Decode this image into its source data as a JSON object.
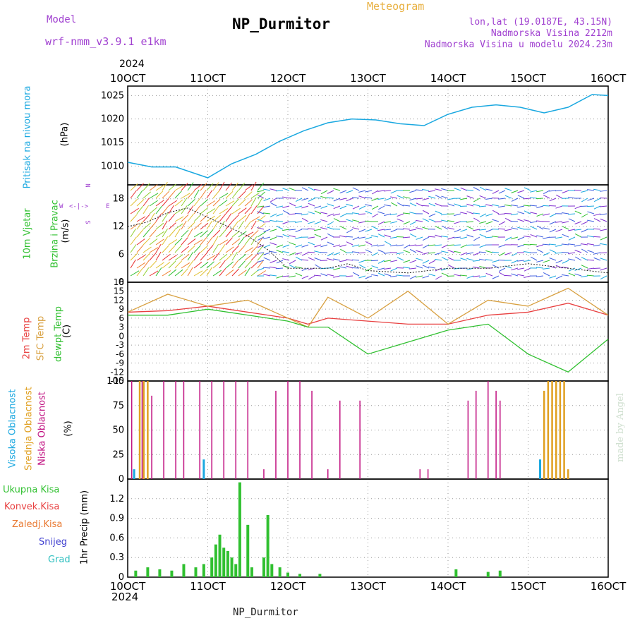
{
  "header": {
    "model_label": "Model",
    "model_name": "wrf-nmm_v3.9.1 e1km",
    "title": "NP_Durmitor",
    "meteogram": "Meteogram",
    "lonlat": "lon,lat (19.0187E, 43.15N)",
    "altitude": "Nadmorska Visina 2212m",
    "model_altitude": "Nadmorska Visina u modelu 2024.23m",
    "year_top": "2024",
    "year_bottom": "2024",
    "footer": "NP_Durmitor",
    "credit": "made by Angel"
  },
  "colors": {
    "pressure": "#1aa8e0",
    "temp2m": "#e84040",
    "sfc": "#d8a040",
    "dewpt": "#30c030",
    "high_cloud": "#1aa8e0",
    "mid_cloud": "#e0a020",
    "low_cloud": "#c01080",
    "precip": "#30c030"
  },
  "chart_data": [
    {
      "type": "line",
      "panel": "pressure",
      "ylabels": [
        "Pritisak na nivou mora",
        "(hPa)"
      ],
      "x_ticks": [
        "10OCT",
        "11OCT",
        "12OCT",
        "13OCT",
        "14OCT",
        "15OCT",
        "16OCT"
      ],
      "ylim": [
        1006,
        1027
      ],
      "y_ticks": [
        "1010",
        "1015",
        "1020",
        "1025"
      ],
      "x": [
        0,
        0.3,
        0.6,
        1.0,
        1.3,
        1.6,
        1.9,
        2.2,
        2.5,
        2.8,
        3.1,
        3.4,
        3.7,
        4.0,
        4.3,
        4.6,
        4.9,
        5.2,
        5.5,
        5.8,
        6.0
      ],
      "values": [
        1010.8,
        1009.8,
        1009.8,
        1007.5,
        1010.5,
        1012.5,
        1015.3,
        1017.5,
        1019.2,
        1020.0,
        1019.8,
        1019.0,
        1018.6,
        1021.0,
        1022.5,
        1023.0,
        1022.5,
        1021.3,
        1022.5,
        1025.2,
        1025.0
      ]
    },
    {
      "type": "scatter",
      "panel": "wind",
      "ylabels": [
        "10m Vjetar",
        "Brzina i Pravac",
        "(m/s)"
      ],
      "compass": [
        "N",
        "W",
        "E",
        "S"
      ],
      "ylim": [
        0,
        21
      ],
      "y_ticks": [
        "0",
        "6",
        "12",
        "18"
      ],
      "x": [
        0,
        0.25,
        0.5,
        0.75,
        1.0,
        1.25,
        1.5,
        1.75,
        2.0,
        2.25,
        2.5,
        2.75,
        3.0,
        3.5,
        4.0,
        4.5,
        5.0,
        5.5,
        6.0
      ],
      "values": [
        12,
        13,
        15,
        16,
        14,
        12,
        10,
        7,
        3,
        3,
        3,
        4,
        2.5,
        2,
        3,
        3,
        4,
        3,
        2
      ]
    },
    {
      "type": "line",
      "panel": "temperature",
      "ylabels": [
        "2m Temp",
        "SFC Temp",
        "dewpt Temp",
        "(C)"
      ],
      "ylim": [
        -15,
        18
      ],
      "y_ticks": [
        "18",
        "15",
        "12",
        "9",
        "6",
        "3",
        "0",
        "-3",
        "-6",
        "-9",
        "-12",
        "-15"
      ],
      "x": [
        0,
        0.5,
        1.0,
        1.5,
        2.0,
        2.25,
        2.5,
        3.0,
        3.5,
        4.0,
        4.5,
        5.0,
        5.5,
        6.0
      ],
      "series": [
        {
          "name": "2m Temp",
          "values": [
            8,
            8.5,
            10,
            8,
            6,
            4,
            6,
            5,
            4,
            4,
            7,
            8,
            11,
            7
          ]
        },
        {
          "name": "SFC Temp",
          "values": [
            8,
            14,
            10,
            12,
            6,
            3,
            13,
            6,
            15,
            4,
            12,
            10,
            16,
            7
          ]
        },
        {
          "name": "dewpt Temp",
          "values": [
            7,
            7,
            9,
            7,
            5,
            3,
            3,
            -6,
            -2,
            2,
            4,
            -6,
            -12,
            -1
          ]
        }
      ]
    },
    {
      "type": "bar",
      "panel": "clouds",
      "ylabels": [
        "Visoka Oblacnost",
        "Srednja Oblacnost",
        "Niska Oblacnost",
        "(%)"
      ],
      "ylim": [
        0,
        100
      ],
      "y_ticks": [
        "0",
        "25",
        "50",
        "75",
        "100"
      ],
      "series": [
        {
          "name": "Niska Oblacnost",
          "x": [
            0.05,
            0.18,
            0.3,
            0.45,
            0.6,
            0.7,
            0.9,
            1.05,
            1.2,
            1.35,
            1.5,
            1.7,
            1.85,
            2.0,
            2.15,
            2.3,
            2.5,
            2.65,
            2.9,
            3.65,
            3.75,
            4.25,
            4.35,
            4.5,
            4.6,
            4.65
          ],
          "values": [
            100,
            100,
            85,
            100,
            100,
            100,
            100,
            100,
            100,
            100,
            100,
            10,
            90,
            100,
            100,
            90,
            10,
            80,
            80,
            10,
            10,
            80,
            90,
            100,
            90,
            80
          ]
        },
        {
          "name": "Srednja Oblacnost",
          "x": [
            0.15,
            0.2,
            0.25,
            5.2,
            5.25,
            5.3,
            5.35,
            5.4,
            5.45,
            5.5
          ],
          "values": [
            100,
            100,
            100,
            90,
            100,
            100,
            100,
            100,
            100,
            10
          ]
        },
        {
          "name": "Visoka Oblacnost",
          "x": [
            0.08,
            0.95,
            5.15
          ],
          "values": [
            10,
            20,
            20
          ]
        }
      ]
    },
    {
      "type": "bar",
      "panel": "precip",
      "ylabels": [
        "Ukupna Kisa",
        "Konvek.Kisa",
        "Zaledj.Kisa",
        "Snijeg",
        "Grad",
        "1hr Precip (mm)"
      ],
      "ylim": [
        0,
        1.5
      ],
      "y_ticks": [
        "0",
        "0.3",
        "0.6",
        "0.9",
        "1.2"
      ],
      "x": [
        0.1,
        0.25,
        0.4,
        0.55,
        0.7,
        0.85,
        0.95,
        1.05,
        1.1,
        1.15,
        1.2,
        1.25,
        1.3,
        1.35,
        1.4,
        1.5,
        1.55,
        1.7,
        1.75,
        1.8,
        1.9,
        2.0,
        2.15,
        2.4,
        4.1,
        4.5,
        4.65
      ],
      "values": [
        0.1,
        0.15,
        0.12,
        0.1,
        0.2,
        0.15,
        0.2,
        0.3,
        0.5,
        0.65,
        0.45,
        0.4,
        0.3,
        0.2,
        1.45,
        0.8,
        0.15,
        0.3,
        0.95,
        0.2,
        0.15,
        0.07,
        0.05,
        0.05,
        0.12,
        0.08,
        0.1
      ]
    }
  ]
}
